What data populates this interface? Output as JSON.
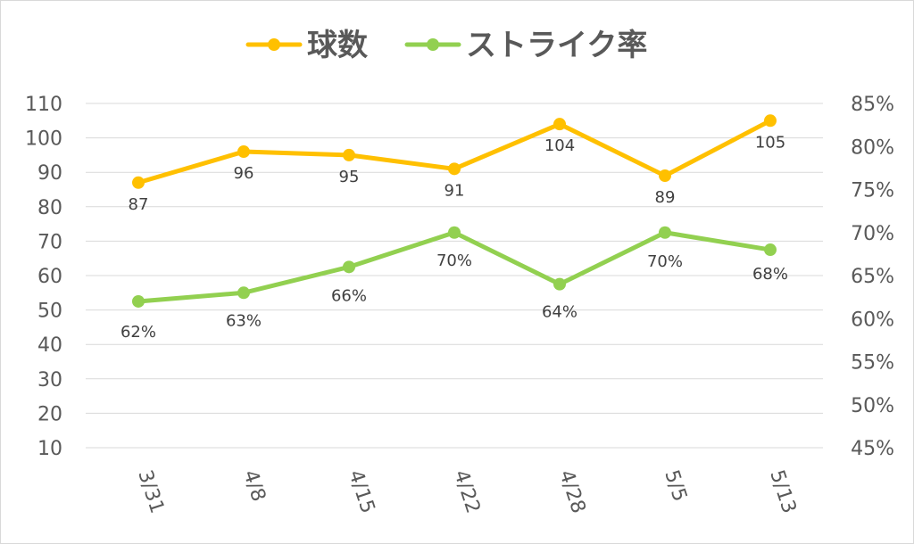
{
  "chart_data": {
    "type": "line",
    "categories": [
      "3/31",
      "4/8",
      "4/15",
      "4/22",
      "4/28",
      "5/5",
      "5/13"
    ],
    "series": [
      {
        "name": "球数",
        "axis": "left",
        "color": "#ffc000",
        "values": [
          87,
          96,
          95,
          91,
          104,
          89,
          105
        ],
        "labels": [
          "87",
          "96",
          "95",
          "91",
          "104",
          "89",
          "105"
        ]
      },
      {
        "name": "ストライク率",
        "axis": "right",
        "color": "#92d050",
        "values": [
          0.62,
          0.63,
          0.66,
          0.7,
          0.64,
          0.7,
          0.68
        ],
        "labels": [
          "62%",
          "63%",
          "66%",
          "70%",
          "64%",
          "70%",
          "68%"
        ]
      }
    ],
    "y_left": {
      "min": 10,
      "max": 110,
      "step": 10,
      "ticks": [
        "10",
        "20",
        "30",
        "40",
        "50",
        "60",
        "70",
        "80",
        "90",
        "100",
        "110"
      ]
    },
    "y_right": {
      "min": 0.45,
      "max": 0.85,
      "step": 0.05,
      "ticks": [
        "45%",
        "50%",
        "55%",
        "60%",
        "65%",
        "70%",
        "75%",
        "80%",
        "85%"
      ]
    },
    "grid": true,
    "legend_position": "top-center"
  }
}
